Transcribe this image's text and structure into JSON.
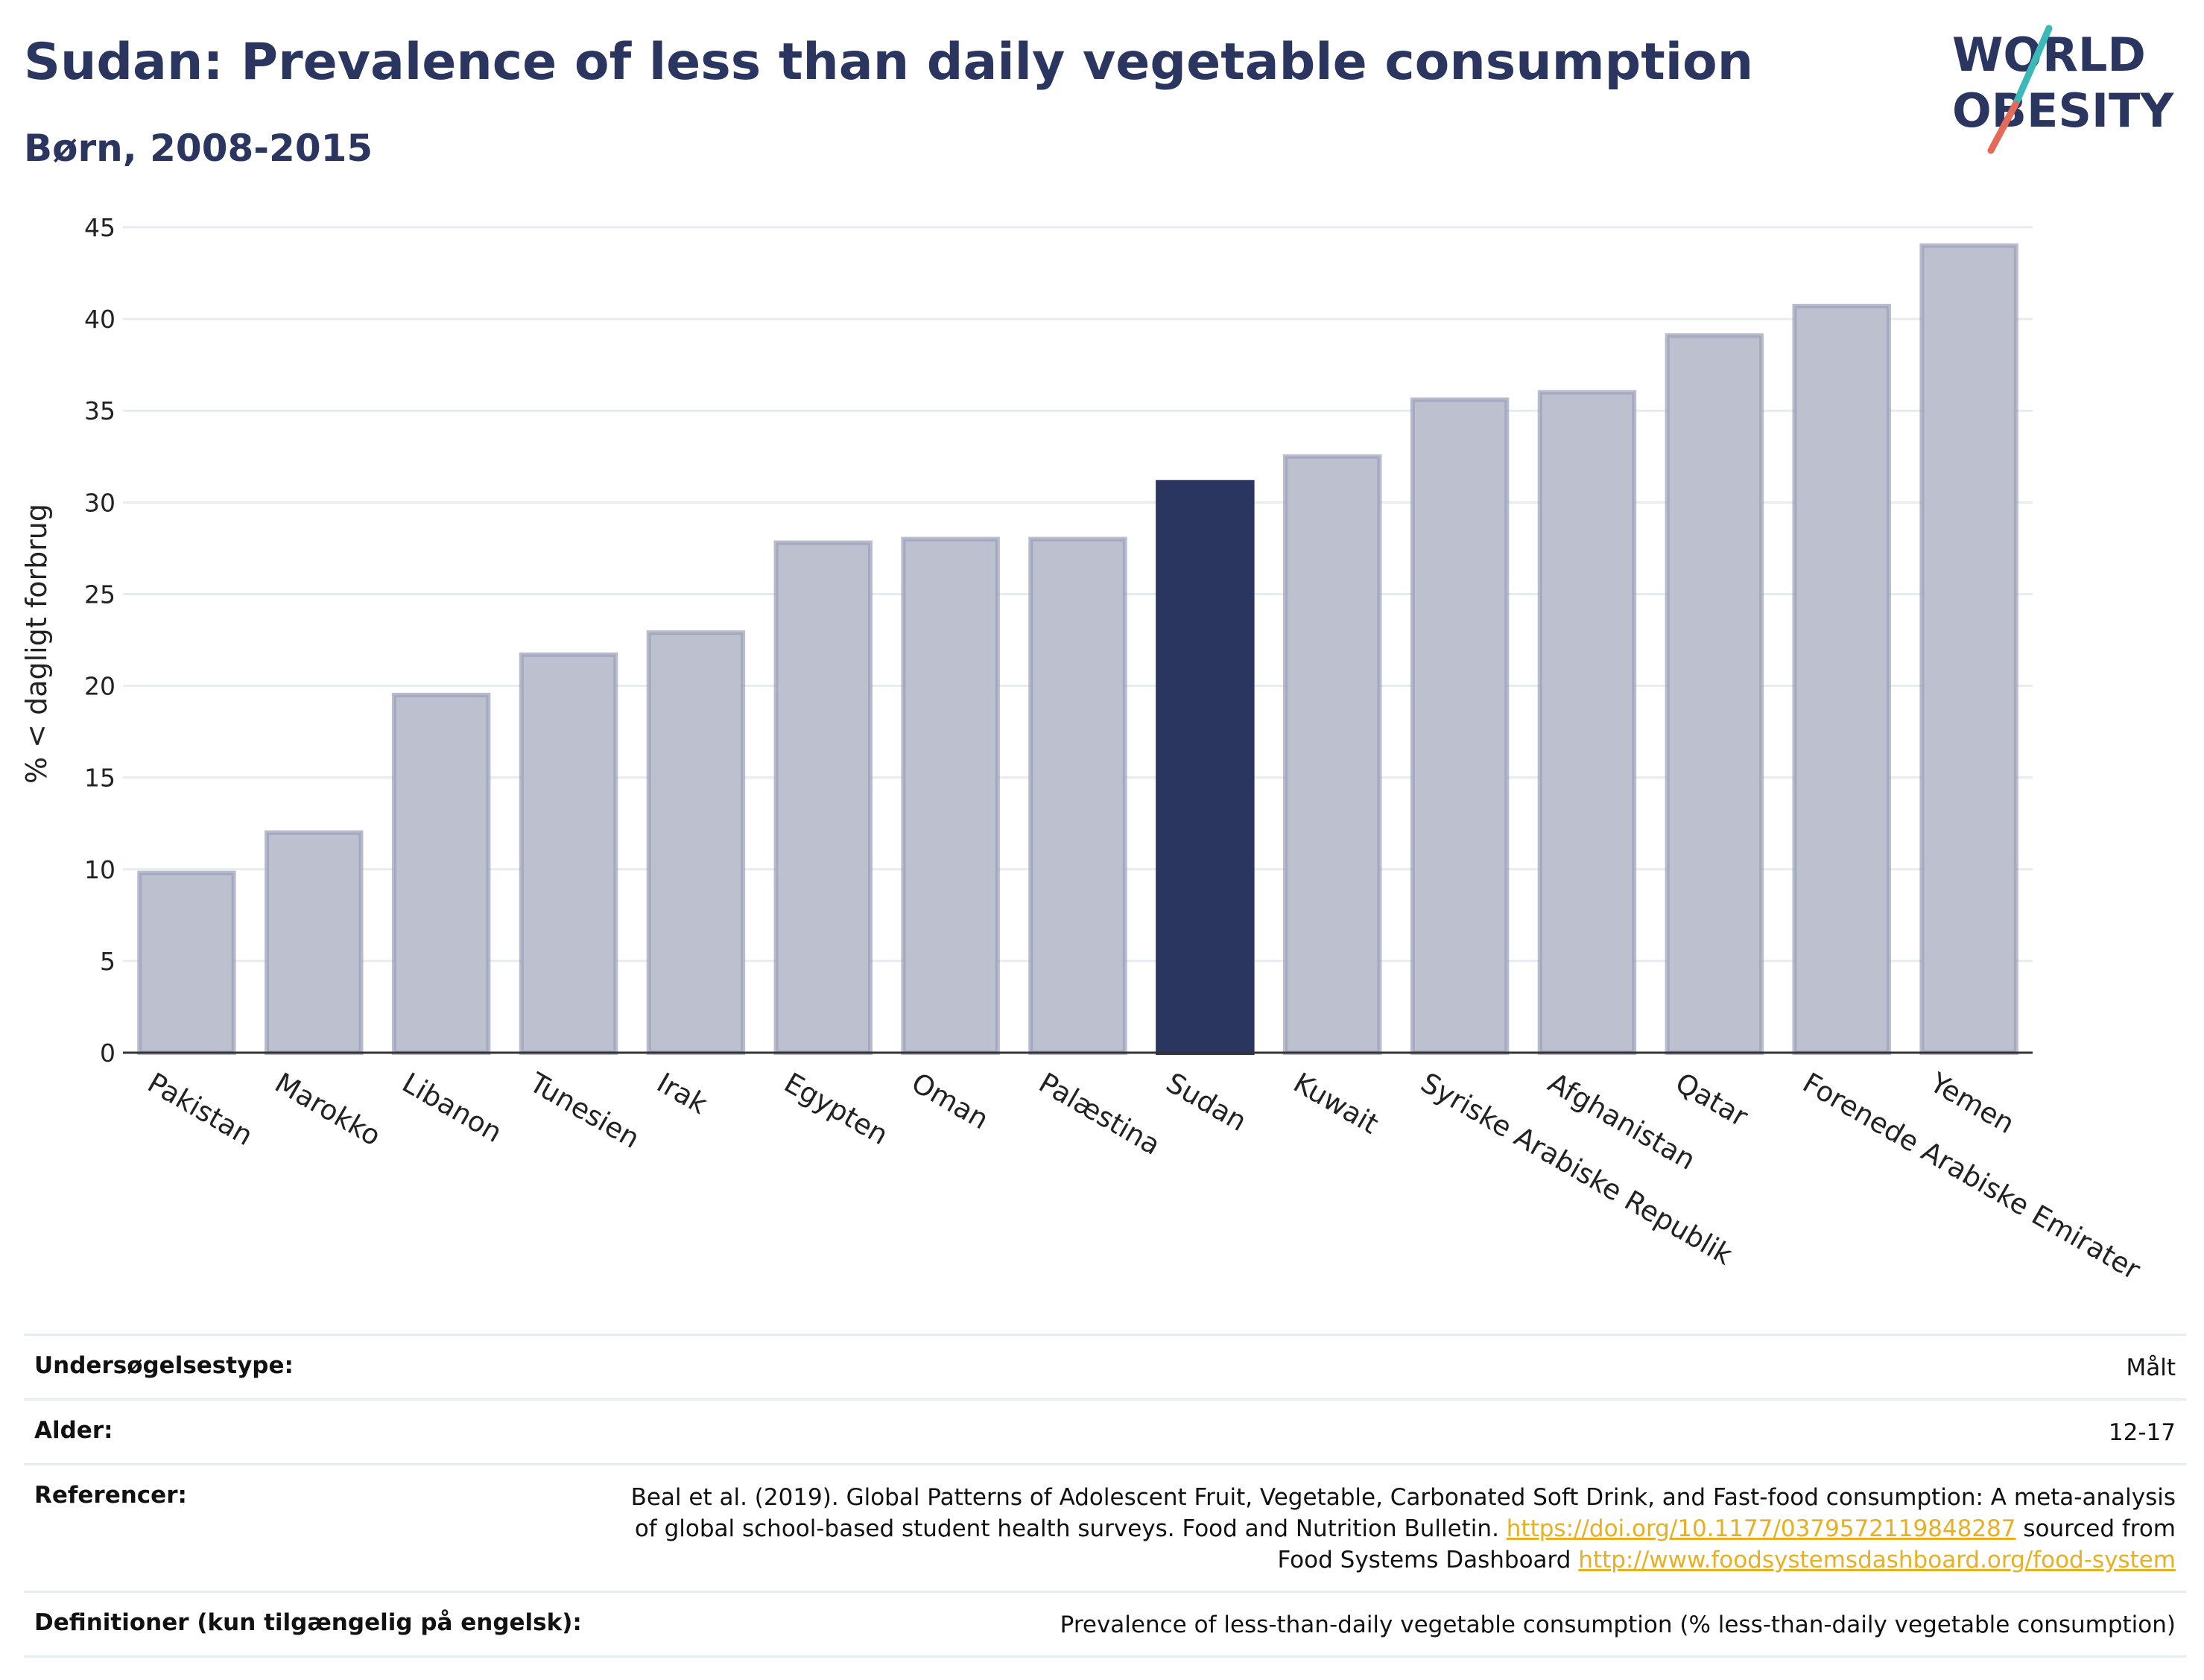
{
  "header": {
    "title": "Sudan: Prevalence of less than daily vegetable consumption",
    "subtitle": "Børn, 2008-2015"
  },
  "logo": {
    "line1": "WORLD",
    "line2": "OBESITY"
  },
  "colors": {
    "highlight": "#2a3560",
    "bar": "#bdc0cf",
    "bar_stroke": "#9aa0b8",
    "link": "#e8b020"
  },
  "chart_data": {
    "type": "bar",
    "ylabel": "% < dagligt forbrug",
    "xlabel": "",
    "ylim": [
      0,
      45
    ],
    "yticks": [
      0,
      5,
      10,
      15,
      20,
      25,
      30,
      35,
      40,
      45
    ],
    "grid": true,
    "highlight": "Sudan",
    "categories": [
      "Pakistan",
      "Marokko",
      "Libanon",
      "Tunesien",
      "Irak",
      "Egypten",
      "Oman",
      "Palæstina",
      "Sudan",
      "Kuwait",
      "Syriske Arabiske Republik",
      "Afghanistan",
      "Qatar",
      "Forenede Arabiske Emirater",
      "Yemen"
    ],
    "values": [
      9.8,
      12.0,
      19.5,
      21.7,
      22.9,
      27.8,
      28.0,
      28.0,
      31.1,
      32.5,
      35.6,
      36.0,
      39.1,
      40.7,
      44.0
    ]
  },
  "info": {
    "survey_type": {
      "label": "Undersøgelsestype:",
      "value": "Målt"
    },
    "age": {
      "label": "Alder:",
      "value": "12-17"
    },
    "references": {
      "label": "Referencer:",
      "text1": "Beal et al. (2019). Global Patterns of Adolescent Fruit, Vegetable, Carbonated Soft Drink, and Fast-food consumption: A meta-analysis of global school-based student health surveys. Food and Nutrition Bulletin. ",
      "link1": "https://doi.org/10.1177/0379572119848287",
      "text2": " sourced from Food Systems Dashboard ",
      "link2": "http://www.foodsystemsdashboard.org/food-system"
    },
    "definitions": {
      "label": "Definitioner (kun tilgængelig på engelsk):",
      "value": "Prevalence of less-than-daily vegetable consumption (% less-than-daily vegetable consumption)"
    }
  }
}
